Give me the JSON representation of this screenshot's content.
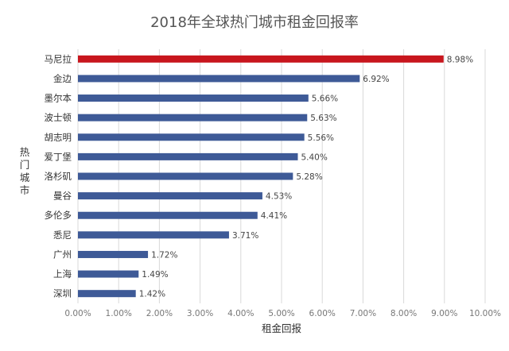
{
  "chart_data": {
    "type": "bar",
    "orientation": "horizontal",
    "title": "2018年全球热门城市租金回报率",
    "xlabel": "租金回报",
    "ylabel": "热门城市",
    "xlim": [
      0,
      10
    ],
    "x_ticks": [
      "0.00%",
      "1.00%",
      "2.00%",
      "3.00%",
      "4.00%",
      "5.00%",
      "6.00%",
      "7.00%",
      "8.00%",
      "9.00%",
      "10.00%"
    ],
    "grid": true,
    "categories": [
      "马尼拉",
      "金边",
      "墨尔本",
      "波士顿",
      "胡志明",
      "爱丁堡",
      "洛杉矶",
      "曼谷",
      "多伦多",
      "悉尼",
      "广州",
      "上海",
      "深圳"
    ],
    "values": [
      8.98,
      6.92,
      5.66,
      5.63,
      5.56,
      5.4,
      5.28,
      4.53,
      4.41,
      3.71,
      1.72,
      1.49,
      1.42
    ],
    "data_labels": [
      "8.98%",
      "6.92%",
      "5.66%",
      "5.63%",
      "5.56%",
      "5.40%",
      "5.28%",
      "4.53%",
      "4.41%",
      "3.71%",
      "1.72%",
      "1.49%",
      "1.42%"
    ],
    "colors": {
      "highlight": "#c8161d",
      "default": "#3e5a97"
    }
  }
}
